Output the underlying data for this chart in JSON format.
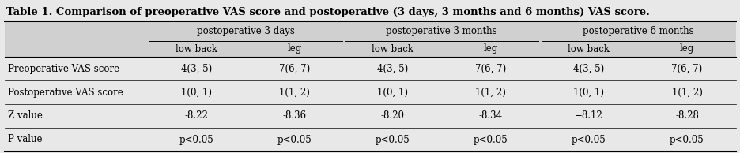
{
  "title": "Table 1. Comparison of preoperative VAS score and postoperative (3 days, 3 months and 6 months) VAS score.",
  "group_headers": [
    "postoperative 3 days",
    "postoperative 3 months",
    "postoperative 6 months"
  ],
  "sub_headers": [
    "low back",
    "leg",
    "low back",
    "leg",
    "low back",
    "leg"
  ],
  "row_labels": [
    "Preoperative VAS score",
    "Postoperative VAS score",
    "Z value",
    "P value"
  ],
  "data": [
    [
      "4(3, 5)",
      "7(6, 7)",
      "4(3, 5)",
      "7(6, 7)",
      "4(3, 5)",
      "7(6, 7)"
    ],
    [
      "1(0, 1)",
      "1(1, 2)",
      "1(0, 1)",
      "1(1, 2)",
      "1(0, 1)",
      "1(1, 2)"
    ],
    [
      "-8.22",
      "-8.36",
      "-8.20",
      "-8.34",
      "−8.12",
      "-8.28"
    ],
    [
      "p<0.05",
      "p<0.05",
      "p<0.05",
      "p<0.05",
      "p<0.05",
      "p<0.05"
    ]
  ],
  "bg_color": "#e8e8e8",
  "header_bg": "#d0d0d0",
  "data_bg": "#e8e8e8",
  "title_fontsize": 9.5,
  "header_fontsize": 8.5,
  "cell_fontsize": 8.5,
  "fig_width": 9.37,
  "fig_height": 1.94
}
